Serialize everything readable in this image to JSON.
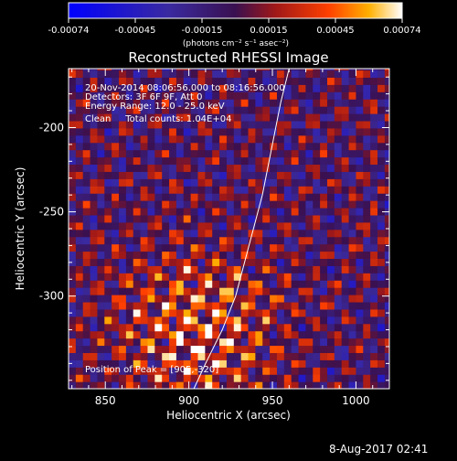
{
  "chart_data": {
    "type": "heatmap",
    "title": "Reconstructed RHESSI Image",
    "xlabel": "Heliocentric X (arcsec)",
    "ylabel": "Heliocentric Y (arcsec)",
    "xlim": [
      828,
      1020
    ],
    "ylim": [
      -355,
      -165
    ],
    "x_ticks": [
      850,
      900,
      950,
      1000
    ],
    "y_ticks": [
      -200,
      -250,
      -300
    ],
    "colorbar": {
      "unit": "(photons cm⁻² s⁻¹ asec⁻²)",
      "range": [
        -0.00074,
        0.00074
      ],
      "tick_labels": [
        "-0.00074",
        "-0.00045",
        "-0.00015",
        "0.00015",
        "0.00045",
        "0.00074"
      ]
    },
    "annotations": [
      "20-Nov-2014 08:06:56.000 to 08:16:56.000",
      "Detectors: 3F 6F 9F, Att 0",
      "Energy Range: 12.0 - 25.0 keV",
      "Clean     Total counts: 1.04E+04"
    ],
    "peak_label": "Position of Peak = [905,-320]",
    "peak": [
      905,
      -320
    ],
    "limb_curve": [
      [
        903,
        -355
      ],
      [
        910,
        -340
      ],
      [
        920,
        -320
      ],
      [
        928,
        -300
      ],
      [
        936,
        -270
      ],
      [
        944,
        -240
      ],
      [
        950,
        -210
      ],
      [
        955,
        -185
      ],
      [
        960,
        -165
      ]
    ]
  },
  "footer": {
    "date": "8-Aug-2017 02:41"
  }
}
